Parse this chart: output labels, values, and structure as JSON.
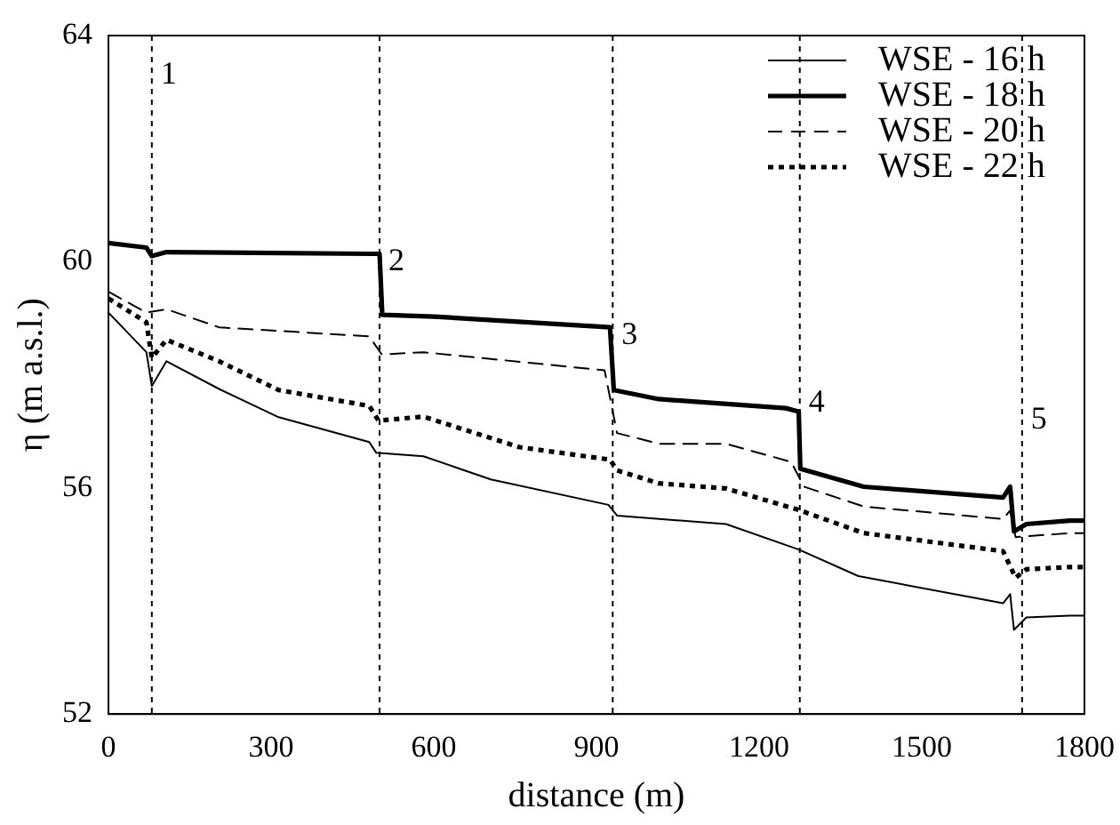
{
  "chart_data": {
    "type": "line",
    "xlabel": "distance (m)",
    "ylabel": "η (m a.s.l.)",
    "xlim": [
      0,
      1800
    ],
    "xticks": [
      0,
      300,
      600,
      900,
      1200,
      1500,
      1800
    ],
    "ylim": [
      52,
      64
    ],
    "yticks": [
      52,
      56,
      60,
      64
    ],
    "grid": false,
    "legend": "top right",
    "marker": "none",
    "series": [
      {
        "name": "WSE - 16 h",
        "color": "#000000",
        "line_style": "solid",
        "x": [
          0,
          70,
          80,
          107,
          204,
          314,
          481,
          494,
          581,
          705,
          922,
          938,
          1139,
          1273,
          1383,
          1650,
          1663,
          1670,
          1693,
          1773,
          1800
        ],
        "values": [
          59.1,
          58.4,
          57.8,
          58.24,
          57.75,
          57.25,
          56.81,
          56.62,
          56.56,
          56.15,
          55.7,
          55.51,
          55.36,
          54.91,
          54.44,
          53.96,
          54.12,
          53.49,
          53.71,
          53.74,
          53.74
        ]
      },
      {
        "name": "WSE - 18 h",
        "color": "#000000",
        "line_style": "solid",
        "x": [
          0,
          70,
          80,
          107,
          481,
          500,
          505,
          600,
          925,
          932,
          1015,
          1249,
          1273,
          1276,
          1393,
          1650,
          1663,
          1670,
          1693,
          1773,
          1800
        ],
        "values": [
          60.33,
          60.25,
          60.1,
          60.17,
          60.14,
          60.14,
          59.06,
          59.03,
          58.84,
          57.73,
          57.57,
          57.41,
          57.35,
          56.34,
          56.02,
          55.83,
          56.02,
          55.23,
          55.36,
          55.42,
          55.42
        ]
      },
      {
        "name": "WSE - 20 h",
        "color": "#000000",
        "line_style": "dashed",
        "x": [
          0,
          70,
          107,
          204,
          481,
          504,
          581,
          915,
          938,
          1015,
          1139,
          1259,
          1283,
          1393,
          1650,
          1663,
          1673,
          1773,
          1800
        ],
        "values": [
          59.47,
          59.1,
          59.16,
          58.84,
          58.68,
          58.36,
          58.4,
          58.08,
          56.97,
          56.78,
          56.78,
          56.46,
          56.02,
          55.67,
          55.45,
          55.6,
          55.13,
          55.2,
          55.2
        ]
      },
      {
        "name": "WSE - 22 h",
        "color": "#000000",
        "line_style": "dotted",
        "x": [
          0,
          70,
          80,
          107,
          204,
          314,
          481,
          498,
          581,
          758,
          925,
          938,
          1015,
          1139,
          1273,
          1393,
          1650,
          1673,
          1693,
          1773,
          1800
        ],
        "values": [
          59.35,
          58.93,
          58.3,
          58.62,
          58.24,
          57.73,
          57.45,
          57.19,
          57.26,
          56.72,
          56.5,
          56.31,
          56.08,
          55.99,
          55.61,
          55.2,
          54.88,
          54.41,
          54.56,
          54.6,
          54.6
        ]
      }
    ],
    "ref_lines": [
      {
        "axis": "x",
        "value": 80,
        "line_style": "dotted",
        "color": "#000000"
      },
      {
        "axis": "x",
        "value": 500,
        "line_style": "dotted",
        "color": "#000000"
      },
      {
        "axis": "x",
        "value": 930,
        "line_style": "dotted",
        "color": "#000000"
      },
      {
        "axis": "x",
        "value": 1275,
        "line_style": "dotted",
        "color": "#000000"
      },
      {
        "axis": "x",
        "value": 1685,
        "line_style": "dotted",
        "color": "#000000"
      }
    ],
    "annotations": [
      {
        "text": "1",
        "x": 80,
        "y": 63.3
      },
      {
        "text": "2",
        "x": 500,
        "y": 60.0
      },
      {
        "text": "3",
        "x": 930,
        "y": 58.7
      },
      {
        "text": "4",
        "x": 1275,
        "y": 57.5
      },
      {
        "text": "5",
        "x": 1685,
        "y": 57.2
      }
    ]
  }
}
